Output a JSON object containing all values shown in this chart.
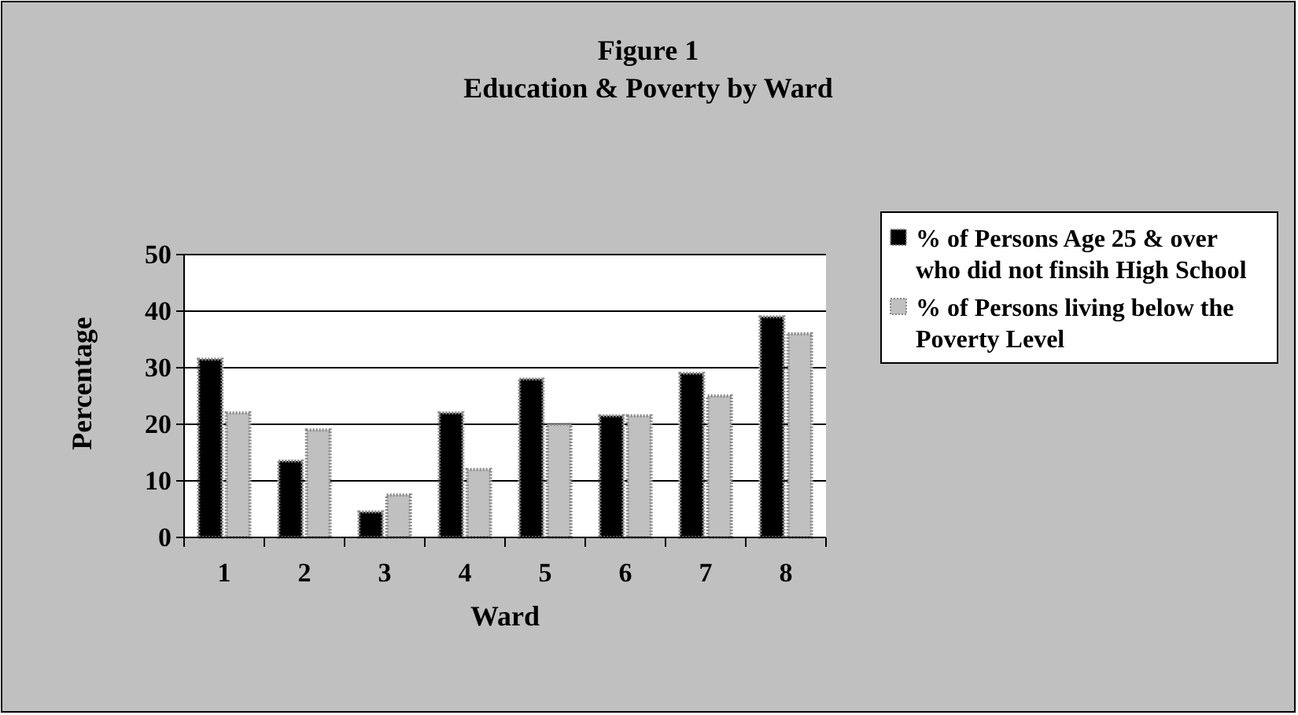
{
  "chart_data": {
    "type": "bar",
    "title": "Figure 1",
    "subtitle": "Education & Poverty by Ward",
    "xlabel": "Ward",
    "ylabel": "Percentage",
    "categories": [
      "1",
      "2",
      "3",
      "4",
      "5",
      "6",
      "7",
      "8"
    ],
    "series": [
      {
        "name": "% of Persons Age 25 & over who did not finsih High School",
        "color": "#000000",
        "values": [
          31.5,
          13.5,
          4.5,
          22,
          28,
          21.5,
          29,
          39
        ]
      },
      {
        "name": "% of Persons living below the Poverty Level",
        "color": "#c0c0c0",
        "values": [
          22,
          19,
          7.5,
          12,
          20,
          21.5,
          25,
          36
        ]
      }
    ],
    "ylim": [
      0,
      50
    ],
    "yticks": [
      0,
      10,
      20,
      30,
      40,
      50
    ],
    "grid": "y",
    "legend": "right"
  }
}
